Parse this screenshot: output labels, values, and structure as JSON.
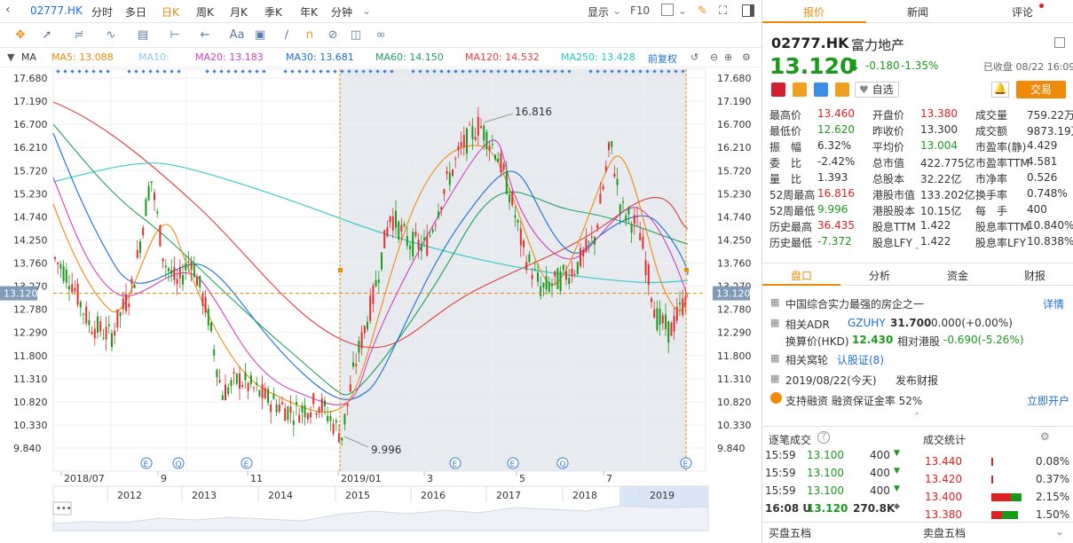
{
  "toolbar": {
    "symbol": "02777.HK",
    "periods": [
      "分时",
      "多日",
      "日K",
      "周K",
      "月K",
      "季K",
      "年K",
      "分钟"
    ],
    "active_period": "日K",
    "display": "显示",
    "f10": "F10"
  },
  "drawtools": {
    "text_tool": "Aa"
  },
  "ma": {
    "label": "MA",
    "items": [
      {
        "text": "MA5: 13.088",
        "color": "#f08a0a"
      },
      {
        "text": "MA10:",
        "color": "#8fc7ee"
      },
      {
        "text": "MA20: 13.183",
        "color": "#d040c0"
      },
      {
        "text": "MA30: 13.681",
        "color": "#1a6fd6"
      },
      {
        "text": "MA60: 14.150",
        "color": "#20a060"
      },
      {
        "text": "MA120: 14.532",
        "color": "#e04040"
      },
      {
        "text": "MA250: 13.428",
        "color": "#20c8c8"
      }
    ],
    "fuquan": "前复权"
  },
  "chart": {
    "y_ticks": [
      "17.680",
      "17.190",
      "16.700",
      "16.210",
      "15.720",
      "15.230",
      "14.740",
      "14.250",
      "13.760",
      "13.270",
      "12.780",
      "12.290",
      "11.800",
      "11.310",
      "10.820",
      "10.330",
      "9.840"
    ],
    "current_price_label": "13.120",
    "high_label": "16.816",
    "low_label": "9.996",
    "x_labels": [
      "2018/07",
      "9",
      "11",
      "2019/01",
      "3",
      "5",
      "7"
    ],
    "event_e": "E",
    "event_q": "Q",
    "overview_years": [
      "2012",
      "2013",
      "2014",
      "2015",
      "2016",
      "2017",
      "2018",
      "2019"
    ]
  },
  "chart_data": {
    "type": "candlestick",
    "title": "",
    "ylim": [
      9.84,
      17.68
    ],
    "y_ticks": [
      17.68,
      17.19,
      16.7,
      16.21,
      15.72,
      15.23,
      14.74,
      14.25,
      13.76,
      13.27,
      12.78,
      12.29,
      11.8,
      11.31,
      10.82,
      10.33,
      9.84
    ],
    "x_labels": [
      "2018/07",
      "9",
      "11",
      "2019/01",
      "3",
      "5",
      "7"
    ],
    "last_price": 13.12,
    "period_high": 16.816,
    "period_low": 9.996,
    "ma": {
      "MA5": 13.088,
      "MA20": 13.183,
      "MA30": 13.681,
      "MA60": 14.15,
      "MA120": 14.532,
      "MA250": 13.428
    }
  },
  "side": {
    "tabs": [
      "报价",
      "新闻",
      "评论"
    ],
    "code": "02777.HK",
    "name": "富力地产",
    "price": "13.120",
    "change": "-0.180",
    "change_pct": "-1.35%",
    "status": "已收盘 08/22 16:09",
    "fav_label": "自选",
    "trade_label": "交易",
    "quote_rows": [
      [
        {
          "k": "最高价",
          "v": "13.460",
          "c": "red"
        },
        {
          "k": "开盘价",
          "v": "13.380",
          "c": "red"
        },
        {
          "k": "成交量",
          "v": "759.22万",
          "c": ""
        }
      ],
      [
        {
          "k": "最低价",
          "v": "12.620",
          "c": "green"
        },
        {
          "k": "昨收价",
          "v": "13.300",
          "c": ""
        },
        {
          "k": "成交额",
          "v": "9873.19万",
          "c": ""
        }
      ],
      [
        {
          "k": "振　幅",
          "v": "6.32%",
          "c": ""
        },
        {
          "k": "平均价",
          "v": "13.004",
          "c": "green"
        },
        {
          "k": "市盈率(静)",
          "v": "4.429",
          "c": ""
        }
      ],
      [
        {
          "k": "委　比",
          "v": "-2.42%",
          "c": ""
        },
        {
          "k": "总市值",
          "v": "422.775亿",
          "c": ""
        },
        {
          "k": "市盈率TTM",
          "v": "4.581",
          "c": ""
        }
      ],
      [
        {
          "k": "量　比",
          "v": "1.393",
          "c": ""
        },
        {
          "k": "总股本",
          "v": "32.22亿",
          "c": ""
        },
        {
          "k": "市净率",
          "v": "0.526",
          "c": ""
        }
      ],
      [
        {
          "k": "52周最高",
          "v": "16.816",
          "c": "red"
        },
        {
          "k": "港股市值",
          "v": "133.202亿",
          "c": ""
        },
        {
          "k": "换手率",
          "v": "0.748%",
          "c": ""
        }
      ],
      [
        {
          "k": "52周最低",
          "v": "9.996",
          "c": "green"
        },
        {
          "k": "港股股本",
          "v": "10.15亿",
          "c": ""
        },
        {
          "k": "每　手",
          "v": "400",
          "c": ""
        }
      ],
      [
        {
          "k": "历史最高",
          "v": "36.435",
          "c": "red"
        },
        {
          "k": "股息TTM",
          "v": "1.422",
          "c": ""
        },
        {
          "k": "股息率TTM",
          "v": "10.840%",
          "c": ""
        }
      ],
      [
        {
          "k": "历史最低",
          "v": "-7.372",
          "c": "green"
        },
        {
          "k": "股息LFY",
          "v": "1.422",
          "c": ""
        },
        {
          "k": "股息率LFY",
          "v": "10.838%",
          "c": ""
        }
      ]
    ],
    "subtabs": [
      "盘口",
      "分析",
      "资金",
      "财报"
    ],
    "info": {
      "desc": "中国综合实力最强的房企之一",
      "detail": "详情",
      "adr_label": "相关ADR",
      "adr_code": "GZUHY",
      "adr_price": "31.700",
      "adr_change": "0.000(+0.00%)",
      "conv_label": "换算价(HKD)",
      "conv_price": "12.430",
      "premium_label": "相对港股",
      "premium": "-0.690(-5.26%)",
      "warrant_label": "相关窝轮",
      "warrant_link": "认股证(8)",
      "report_date": "2019/08/22(今天)",
      "report_label": "发布财报",
      "margin": "支持融资 融资保证金率 52%",
      "open_account": "立即开户"
    },
    "trades_title": "逐笔成交",
    "trades": [
      {
        "t": "15:59",
        "p": "13.100",
        "v": "400",
        "d": "down"
      },
      {
        "t": "15:59",
        "p": "13.100",
        "v": "400",
        "d": "down"
      },
      {
        "t": "15:59",
        "p": "13.100",
        "v": "400",
        "d": "down"
      },
      {
        "t": "16:08 U",
        "p": "13.120",
        "v": "270.8K",
        "d": "flat"
      }
    ],
    "stats_title": "成交统计",
    "stats": [
      {
        "p": "13.440",
        "pct": "0.08%",
        "r": 0.04,
        "g": 0
      },
      {
        "p": "13.420",
        "pct": "0.37%",
        "r": 0.06,
        "g": 0
      },
      {
        "p": "13.400",
        "pct": "2.15%",
        "r": 0.55,
        "g": 0.3
      },
      {
        "p": "13.380",
        "pct": "1.50%",
        "r": 0.3,
        "g": 0.45
      }
    ],
    "buy5": "买盘五档",
    "sell5": "卖盘五档"
  }
}
